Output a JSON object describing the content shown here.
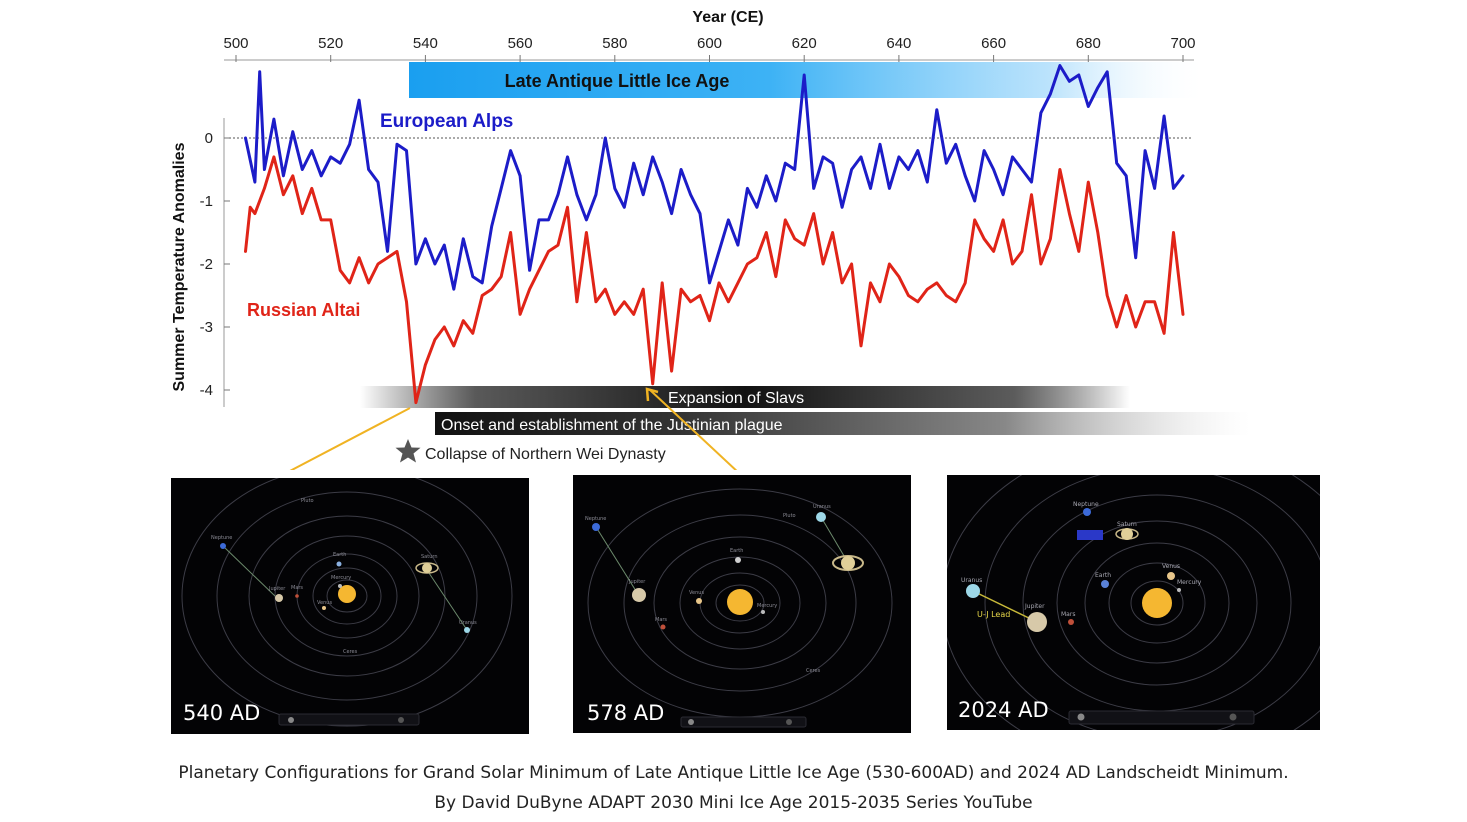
{
  "chart_data": {
    "type": "line",
    "xlabel": "Year (CE)",
    "ylabel": "Summer Temperature Anomalies",
    "xlim": [
      500,
      700
    ],
    "ylim": [
      -4.3,
      1.2
    ],
    "x_ticks": [
      500,
      520,
      540,
      560,
      580,
      600,
      620,
      640,
      660,
      680,
      700
    ],
    "y_ticks": [
      0,
      -1,
      -2,
      -3,
      -4
    ],
    "zero_reference_line": "dotted",
    "series": [
      {
        "name": "European Alps",
        "color": "#1c1cc8",
        "x": [
          502,
          504,
          505,
          506,
          508,
          510,
          512,
          514,
          516,
          518,
          520,
          522,
          524,
          526,
          528,
          530,
          532,
          534,
          536,
          538,
          540,
          542,
          544,
          546,
          548,
          550,
          552,
          554,
          556,
          558,
          560,
          562,
          564,
          566,
          568,
          570,
          572,
          574,
          576,
          578,
          580,
          582,
          584,
          586,
          588,
          590,
          592,
          594,
          596,
          598,
          600,
          602,
          604,
          606,
          608,
          610,
          612,
          614,
          616,
          618,
          620,
          622,
          624,
          626,
          628,
          630,
          632,
          634,
          636,
          638,
          640,
          642,
          644,
          646,
          648,
          650,
          652,
          654,
          656,
          658,
          660,
          662,
          664,
          666,
          668,
          670,
          672,
          674,
          676,
          678,
          680,
          682,
          684,
          686,
          688,
          690,
          692,
          694,
          696,
          698,
          700
        ],
        "values": [
          0.0,
          -0.7,
          1.05,
          -0.5,
          0.3,
          -0.6,
          0.1,
          -0.5,
          -0.2,
          -0.6,
          -0.3,
          -0.4,
          -0.1,
          0.6,
          -0.5,
          -0.7,
          -1.8,
          -0.1,
          -0.2,
          -2.0,
          -1.6,
          -2.0,
          -1.7,
          -2.4,
          -1.6,
          -2.2,
          -2.3,
          -1.4,
          -0.8,
          -0.2,
          -0.6,
          -2.1,
          -1.3,
          -1.3,
          -0.9,
          -0.3,
          -0.9,
          -1.3,
          -0.9,
          0.0,
          -0.8,
          -1.1,
          -0.4,
          -0.9,
          -0.3,
          -0.7,
          -1.2,
          -0.5,
          -0.9,
          -1.2,
          -2.3,
          -1.8,
          -1.3,
          -1.7,
          -0.8,
          -1.1,
          -0.6,
          -1.0,
          -0.4,
          -0.5,
          1.0,
          -0.8,
          -0.3,
          -0.4,
          -1.1,
          -0.5,
          -0.3,
          -0.8,
          -0.1,
          -0.8,
          -0.3,
          -0.5,
          -0.2,
          -0.7,
          0.45,
          -0.4,
          -0.1,
          -0.6,
          -1.0,
          -0.2,
          -0.5,
          -0.9,
          -0.3,
          -0.5,
          -0.7,
          0.4,
          0.7,
          1.15,
          0.9,
          1.0,
          0.5,
          0.8,
          1.05,
          -0.4,
          -0.6,
          -1.9,
          -0.2,
          -0.8,
          0.35,
          -0.8,
          -0.6
        ]
      },
      {
        "name": "Russian Altai",
        "color": "#e02418",
        "x": [
          502,
          503,
          504,
          506,
          508,
          510,
          512,
          514,
          516,
          518,
          520,
          522,
          524,
          526,
          528,
          530,
          532,
          534,
          536,
          538,
          540,
          542,
          544,
          546,
          548,
          550,
          552,
          554,
          556,
          558,
          560,
          562,
          564,
          566,
          568,
          570,
          572,
          574,
          576,
          578,
          580,
          582,
          584,
          586,
          588,
          590,
          592,
          594,
          596,
          598,
          600,
          602,
          604,
          606,
          608,
          610,
          612,
          614,
          616,
          618,
          620,
          622,
          624,
          626,
          628,
          630,
          632,
          634,
          636,
          638,
          640,
          642,
          644,
          646,
          648,
          650,
          652,
          654,
          656,
          658,
          660,
          662,
          664,
          666,
          668,
          670,
          672,
          674,
          676,
          678,
          680,
          682,
          684,
          686,
          688,
          690,
          692,
          694,
          696,
          698,
          700
        ],
        "values": [
          -1.8,
          -1.1,
          -1.2,
          -0.8,
          -0.3,
          -0.9,
          -0.6,
          -1.2,
          -0.8,
          -1.3,
          -1.3,
          -2.1,
          -2.3,
          -1.9,
          -2.3,
          -2.0,
          -1.9,
          -1.8,
          -2.6,
          -4.2,
          -3.6,
          -3.2,
          -3.0,
          -3.3,
          -2.9,
          -3.1,
          -2.5,
          -2.4,
          -2.2,
          -1.5,
          -2.8,
          -2.4,
          -2.1,
          -1.8,
          -1.7,
          -1.1,
          -2.6,
          -1.5,
          -2.6,
          -2.4,
          -2.8,
          -2.6,
          -2.8,
          -2.4,
          -3.9,
          -2.3,
          -3.7,
          -2.4,
          -2.6,
          -2.5,
          -2.9,
          -2.3,
          -2.6,
          -2.3,
          -2.0,
          -1.9,
          -1.5,
          -2.2,
          -1.3,
          -1.6,
          -1.7,
          -1.2,
          -2.0,
          -1.5,
          -2.3,
          -2.0,
          -3.3,
          -2.3,
          -2.6,
          -2.0,
          -2.2,
          -2.5,
          -2.6,
          -2.4,
          -2.3,
          -2.5,
          -2.6,
          -2.3,
          -1.3,
          -1.6,
          -1.8,
          -1.3,
          -2.0,
          -1.8,
          -0.9,
          -2.0,
          -1.6,
          -0.5,
          -1.2,
          -1.8,
          -0.7,
          -1.5,
          -2.5,
          -3.0,
          -2.5,
          -3.0,
          -2.6,
          -2.6,
          -3.1,
          -1.5,
          -2.8
        ]
      }
    ],
    "annotations": {
      "ice_age_band": "Late Antique Little Ice Age",
      "event_slavs": "Expansion of Slavs",
      "event_plague": "Onset and establishment of the Justinian plague",
      "event_wei": "Collapse of Northern Wei Dynasty"
    }
  },
  "panels": [
    {
      "label": "540 AD",
      "bodies": [
        "Pluto",
        "Neptune",
        "Earth",
        "Mercury",
        "Jupiter",
        "Mars",
        "Venus",
        "Saturn",
        "Uranus",
        "Ceres"
      ]
    },
    {
      "label": "578 AD",
      "bodies": [
        "Neptune",
        "Pluto",
        "Uranus",
        "Earth",
        "Jupiter",
        "Venus",
        "Mercury",
        "Mars",
        "Ceres"
      ]
    },
    {
      "label": "2024 AD",
      "bodies": [
        "Neptune",
        "Saturn",
        "Venus",
        "Uranus",
        "Earth",
        "Mercury",
        "Jupiter",
        "Mars",
        "U-J Lead"
      ]
    }
  ],
  "caption": {
    "line1": "Planetary Configurations for Grand Solar Minimum of Late Antique Little Ice Age (530-600AD) and 2024 AD Landscheidt Minimum.",
    "line2": "By David DuByne ADAPT 2030 Mini Ice Age 2015-2035 Series YouTube"
  }
}
